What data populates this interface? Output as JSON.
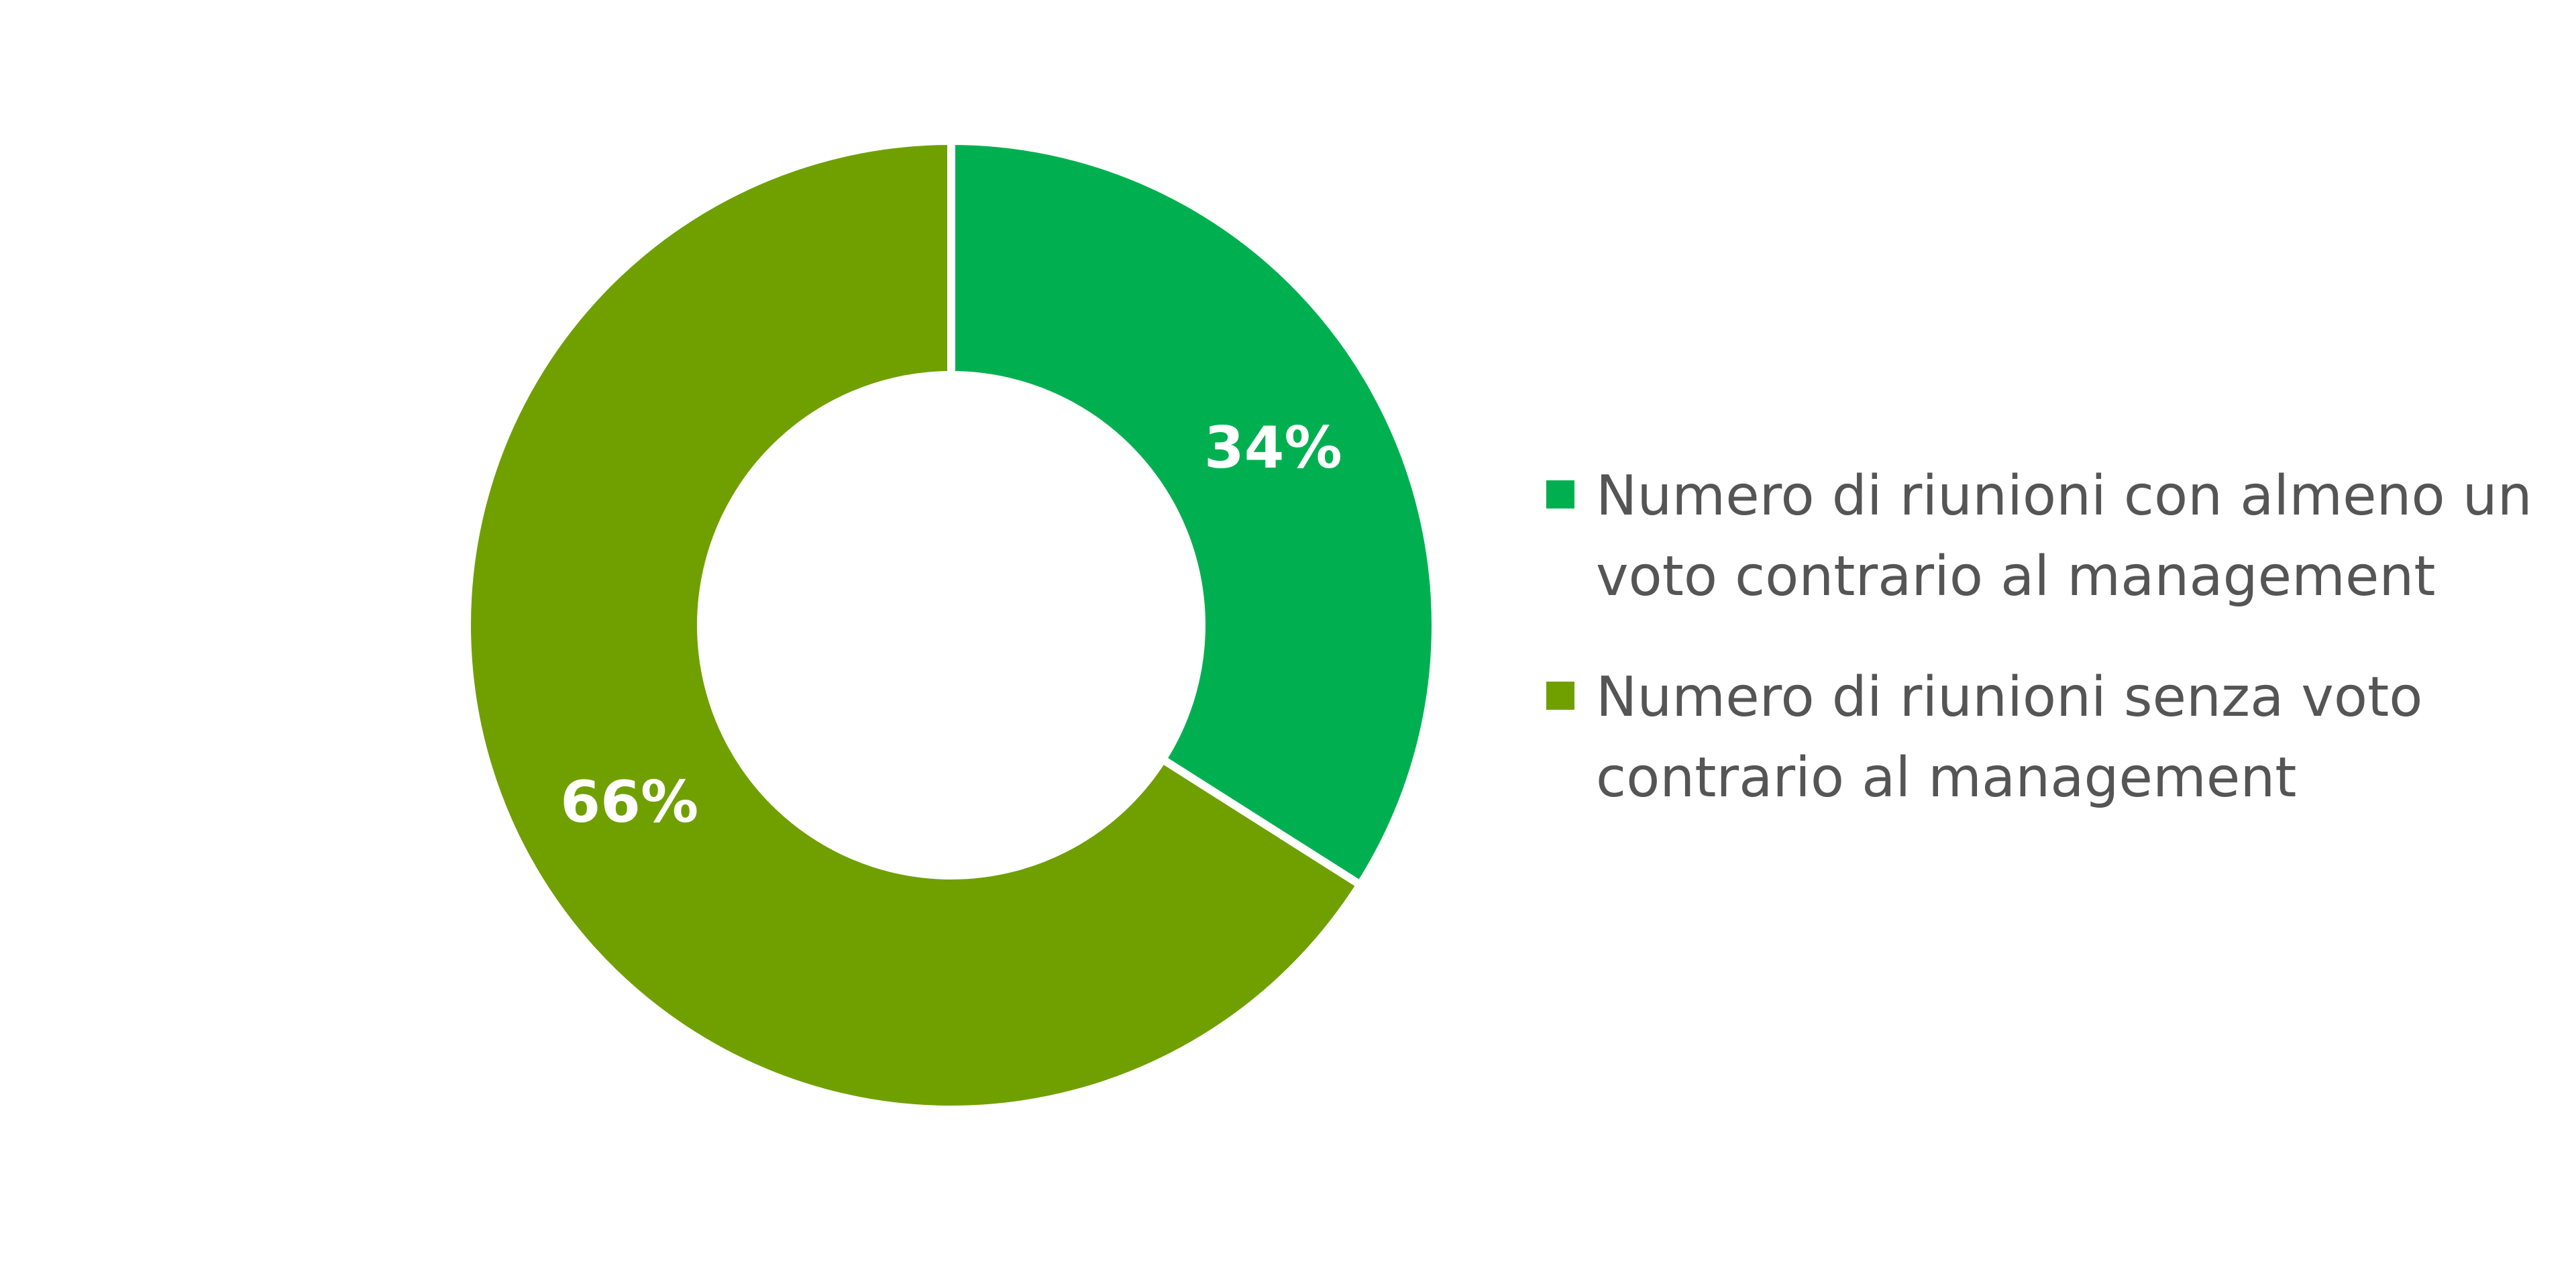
{
  "chart_data": {
    "type": "pie",
    "style": "donut",
    "start_angle_deg": 0,
    "direction": "clockwise",
    "slices": [
      {
        "label": "Numero di riunioni con almeno un voto contrario al management",
        "value": 34,
        "display": "34%",
        "color": "#00b050"
      },
      {
        "label": "Numero di riunioni senza voto contrario al management",
        "value": 66,
        "display": "66%",
        "color": "#70a000"
      }
    ],
    "legend": {
      "placement": "right"
    },
    "separator_color": "#ffffff"
  }
}
